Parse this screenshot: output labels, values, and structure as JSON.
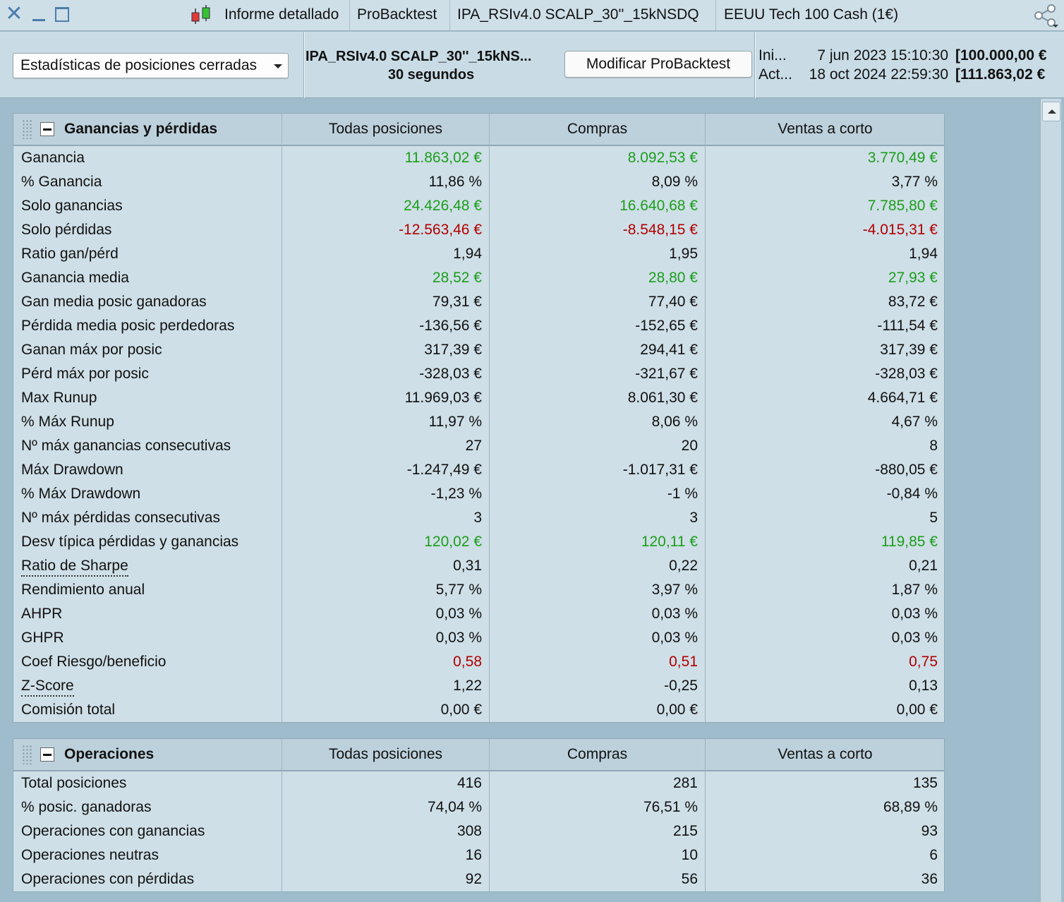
{
  "titlebar": {
    "tabs": [
      "Informe detallado",
      "ProBacktest",
      "IPA_RSIv4.0 SCALP_30''_15kNSDQ",
      "EEUU Tech 100 Cash (1€)"
    ]
  },
  "toolbar": {
    "dropdown_value": "Estadísticas de posiciones cerradas",
    "strategy_name": "IPA_RSIv4.0 SCALP_30''_15kNS...",
    "timeframe": "30 segundos",
    "modify_button": "Modificar ProBacktest",
    "start_label": "Ini...",
    "start_date": "7 jun 2023 15:10:30",
    "start_capital": "[100.000,00 €",
    "current_label": "Act...",
    "current_date": "18 oct 2024 22:59:30",
    "current_capital": "[111.863,02 €"
  },
  "columns": [
    "Todas posiciones",
    "Compras",
    "Ventas a corto"
  ],
  "colors": {
    "positive": "#1b9e1b",
    "negative": "#b00000"
  },
  "pnl": {
    "title": "Ganancias y pérdidas",
    "rows": [
      {
        "label": "Ganancia",
        "values": [
          "11.863,02 €",
          "8.092,53 €",
          "3.770,49 €"
        ],
        "tone": "pos"
      },
      {
        "label": "% Ganancia",
        "values": [
          "11,86 %",
          "8,09 %",
          "3,77 %"
        ],
        "tone": ""
      },
      {
        "label": "Solo ganancias",
        "values": [
          "24.426,48 €",
          "16.640,68 €",
          "7.785,80 €"
        ],
        "tone": "pos"
      },
      {
        "label": "Solo pérdidas",
        "values": [
          "-12.563,46 €",
          "-8.548,15 €",
          "-4.015,31 €"
        ],
        "tone": "neg"
      },
      {
        "label": "Ratio gan/pérd",
        "values": [
          "1,94",
          "1,95",
          "1,94"
        ],
        "tone": ""
      },
      {
        "label": "Ganancia media",
        "values": [
          "28,52 €",
          "28,80 €",
          "27,93 €"
        ],
        "tone": "pos"
      },
      {
        "label": "Gan media posic ganadoras",
        "values": [
          "79,31 €",
          "77,40 €",
          "83,72 €"
        ],
        "tone": ""
      },
      {
        "label": "Pérdida media posic perdedoras",
        "values": [
          "-136,56 €",
          "-152,65 €",
          "-111,54 €"
        ],
        "tone": ""
      },
      {
        "label": "Ganan máx por posic",
        "values": [
          "317,39 €",
          "294,41 €",
          "317,39 €"
        ],
        "tone": ""
      },
      {
        "label": "Pérd máx por posic",
        "values": [
          "-328,03 €",
          "-321,67 €",
          "-328,03 €"
        ],
        "tone": ""
      },
      {
        "label": "Max Runup",
        "values": [
          "11.969,03 €",
          "8.061,30 €",
          "4.664,71 €"
        ],
        "tone": ""
      },
      {
        "label": "% Máx Runup",
        "values": [
          "11,97 %",
          "8,06 %",
          "4,67 %"
        ],
        "tone": ""
      },
      {
        "label": "Nº máx ganancias consecutivas",
        "values": [
          "27",
          "20",
          "8"
        ],
        "tone": ""
      },
      {
        "label": "Máx Drawdown",
        "values": [
          "-1.247,49 €",
          "-1.017,31 €",
          "-880,05 €"
        ],
        "tone": ""
      },
      {
        "label": "% Máx Drawdown",
        "values": [
          "-1,23 %",
          "-1 %",
          "-0,84 %"
        ],
        "tone": ""
      },
      {
        "label": "Nº máx pérdidas consecutivas",
        "values": [
          "3",
          "3",
          "5"
        ],
        "tone": ""
      },
      {
        "label": "Desv típica pérdidas y ganancias",
        "values": [
          "120,02 €",
          "120,11 €",
          "119,85 €"
        ],
        "tone": "pos"
      },
      {
        "label": "Ratio de Sharpe",
        "values": [
          "0,31",
          "0,22",
          "0,21"
        ],
        "tone": "",
        "link": true
      },
      {
        "label": "Rendimiento anual",
        "values": [
          "5,77 %",
          "3,97 %",
          "1,87 %"
        ],
        "tone": ""
      },
      {
        "label": "AHPR",
        "values": [
          "0,03 %",
          "0,03 %",
          "0,03 %"
        ],
        "tone": ""
      },
      {
        "label": "GHPR",
        "values": [
          "0,03 %",
          "0,03 %",
          "0,03 %"
        ],
        "tone": ""
      },
      {
        "label": "Coef Riesgo/beneficio",
        "values": [
          "0,58",
          "0,51",
          "0,75"
        ],
        "tone": "neg"
      },
      {
        "label": "Z-Score",
        "values": [
          "1,22",
          "-0,25",
          "0,13"
        ],
        "tone": "",
        "link": true
      },
      {
        "label": "Comisión total",
        "values": [
          "0,00 €",
          "0,00 €",
          "0,00 €"
        ],
        "tone": ""
      }
    ]
  },
  "ops": {
    "title": "Operaciones",
    "rows": [
      {
        "label": "Total posiciones",
        "values": [
          "416",
          "281",
          "135"
        ],
        "tone": ""
      },
      {
        "label": "% posic. ganadoras",
        "values": [
          "74,04 %",
          "76,51 %",
          "68,89 %"
        ],
        "tone": ""
      },
      {
        "label": "Operaciones con ganancias",
        "values": [
          "308",
          "215",
          "93"
        ],
        "tone": ""
      },
      {
        "label": "Operaciones neutras",
        "values": [
          "16",
          "10",
          "6"
        ],
        "tone": ""
      },
      {
        "label": "Operaciones con pérdidas",
        "values": [
          "92",
          "56",
          "36"
        ],
        "tone": ""
      }
    ]
  }
}
